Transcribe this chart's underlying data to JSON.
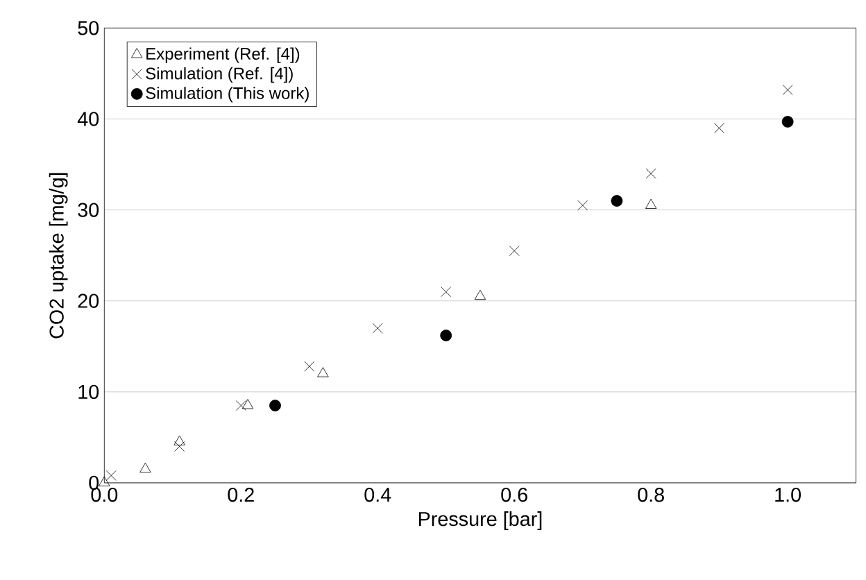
{
  "chart_data": {
    "type": "scatter",
    "xlabel": "Pressure [bar]",
    "ylabel": "CO2 uptake [mg/g]",
    "xlim": [
      0,
      1.1
    ],
    "ylim": [
      0,
      50
    ],
    "xticks": [
      {
        "value": 0,
        "label": "0.0"
      },
      {
        "value": 0.2,
        "label": "0.2"
      },
      {
        "value": 0.4,
        "label": "0.4"
      },
      {
        "value": 0.6,
        "label": "0.6"
      },
      {
        "value": 0.8,
        "label": "0.8"
      },
      {
        "value": 1.0,
        "label": "1.0"
      }
    ],
    "yticks": [
      0,
      10,
      20,
      30,
      40,
      50
    ],
    "grid": "y",
    "legend": "top left",
    "series": [
      {
        "name": "Experiment (Ref. [4])",
        "color": "#000000",
        "marker": "triangle",
        "x": [
          0.0,
          0.06,
          0.11,
          0.21,
          0.32,
          0.55,
          0.8
        ],
        "values": [
          0,
          1.5,
          4.5,
          8.5,
          12,
          20.5,
          30.5
        ]
      },
      {
        "name": "Simulation (Ref. [4])",
        "color": "#000000",
        "marker": "cross",
        "x": [
          0.01,
          0.11,
          0.2,
          0.3,
          0.4,
          0.5,
          0.6,
          0.7,
          0.8,
          0.9,
          1.0
        ],
        "values": [
          0.8,
          4,
          8.5,
          12.8,
          17,
          21,
          25.5,
          30.5,
          34,
          39,
          43.2
        ]
      },
      {
        "name": "Simulation (This work)",
        "color": "#000000",
        "marker": "circle",
        "x": [
          0.25,
          0.5,
          0.75,
          1.0
        ],
        "values": [
          8.5,
          16.2,
          31,
          39.7
        ]
      }
    ]
  }
}
